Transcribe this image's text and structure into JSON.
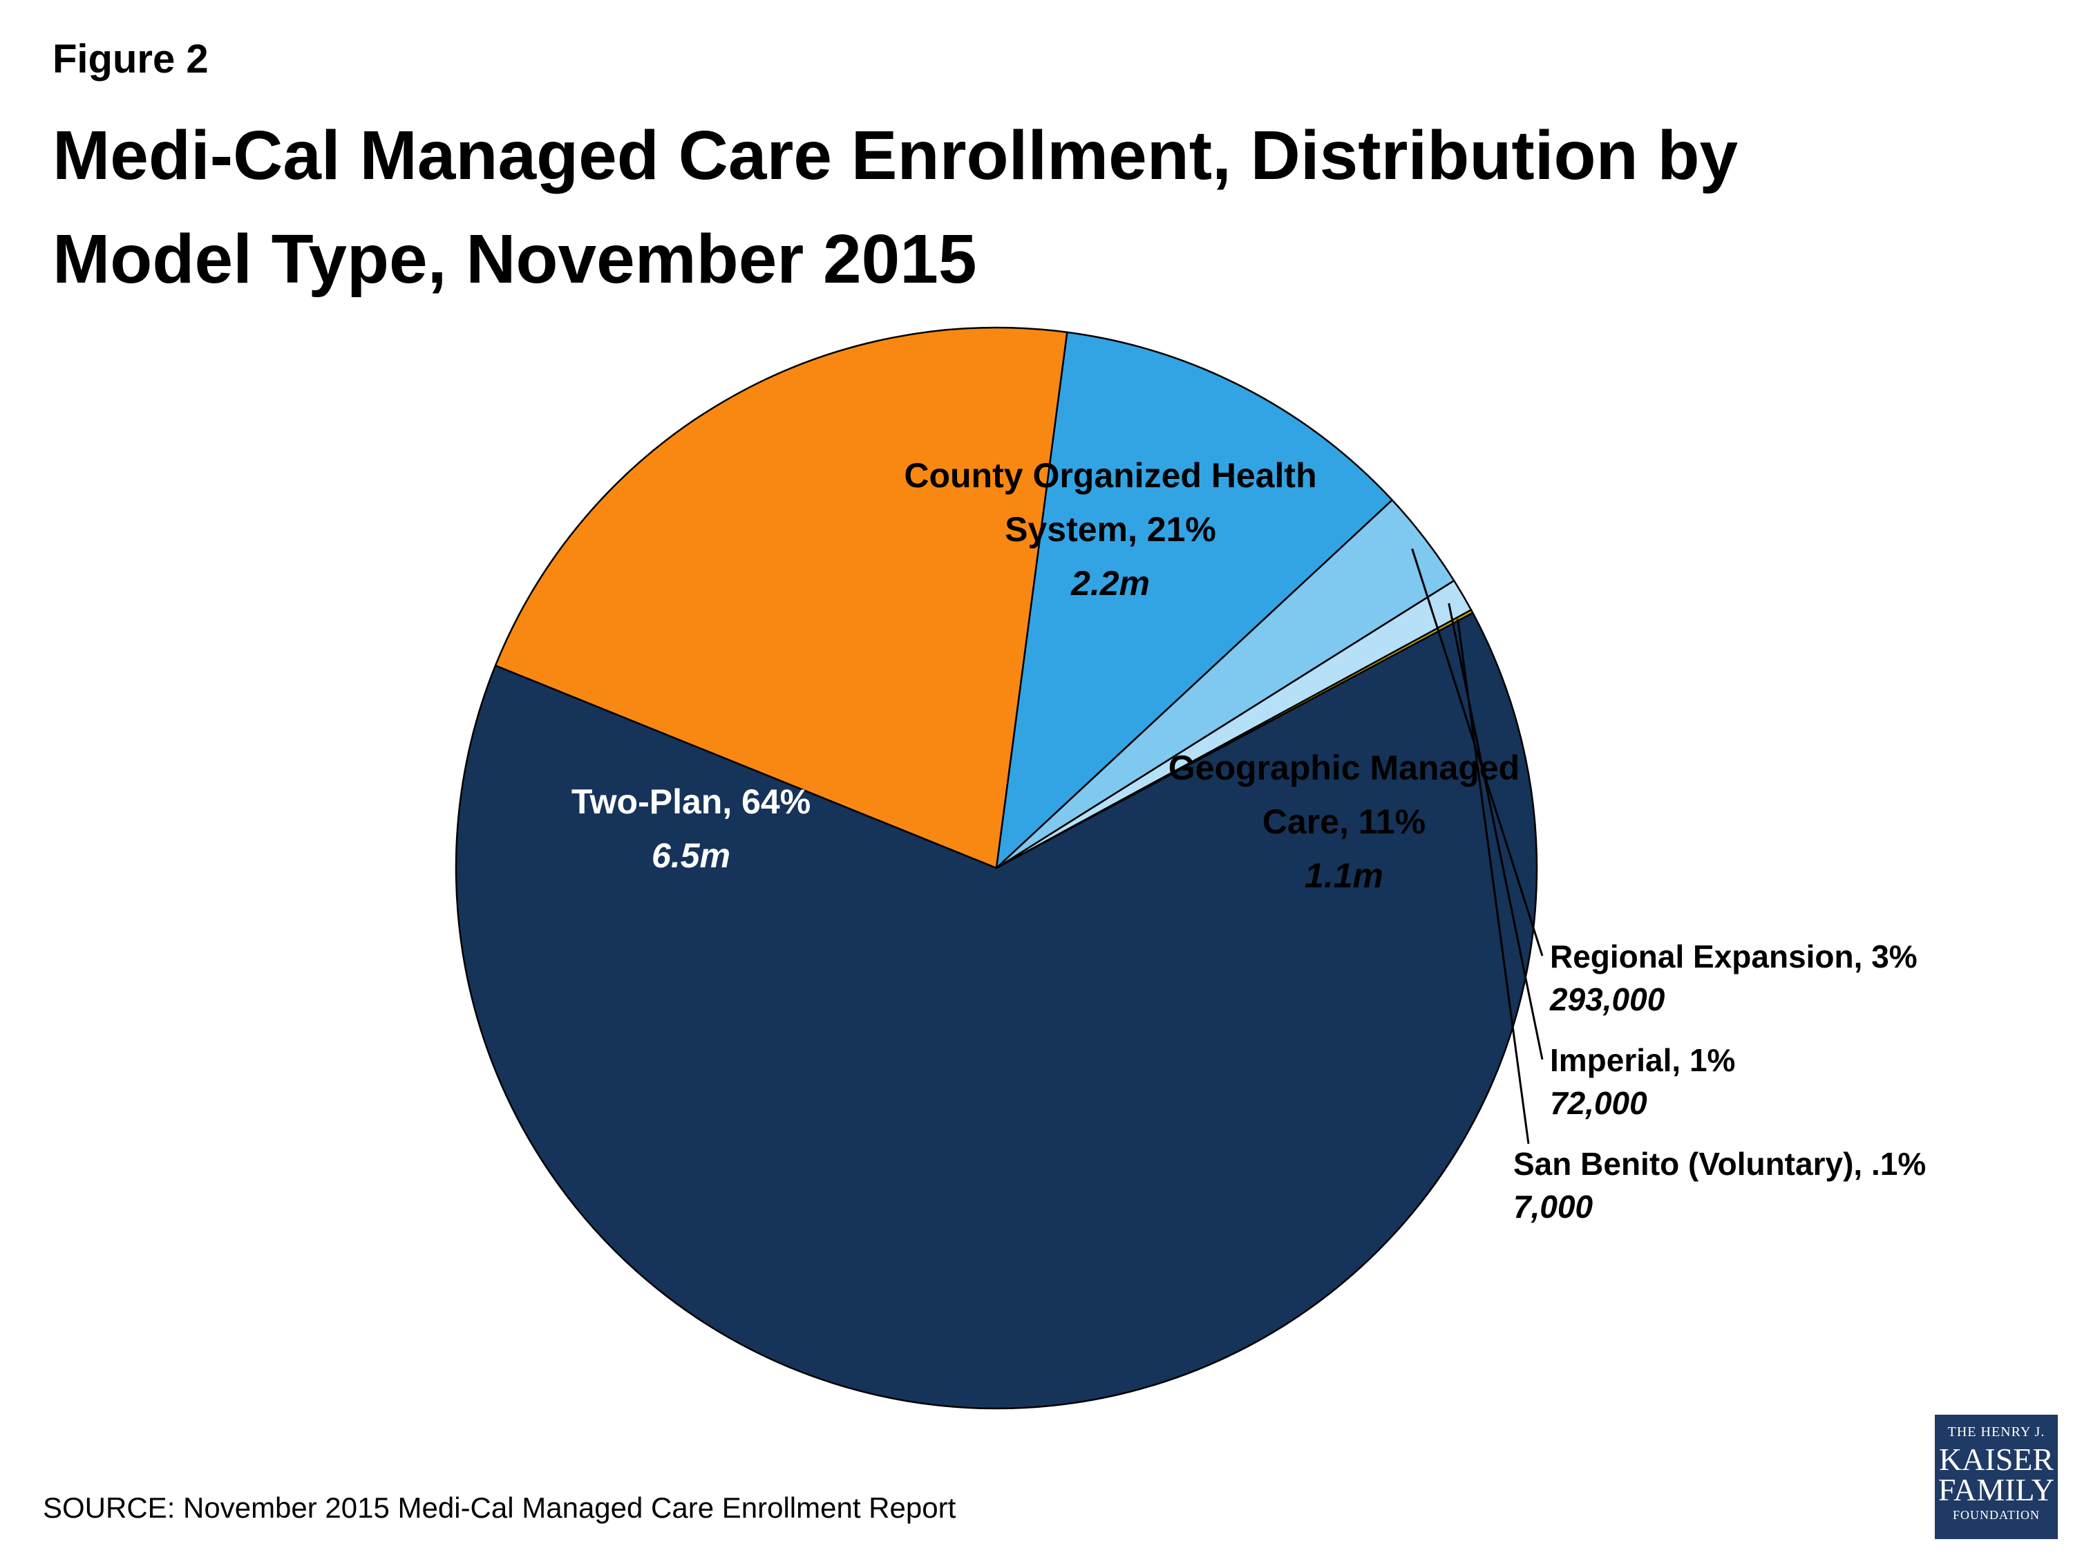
{
  "figure_label": "Figure 2",
  "title_line1": "Medi-Cal Managed Care Enrollment, Distribution by",
  "title_line2": "Model Type, November 2015",
  "source": "SOURCE: November 2015 Medi-Cal Managed Care Enrollment Report",
  "logo": {
    "line1": "THE HENRY J.",
    "line2": "KAISER",
    "line3": "FAMILY",
    "line4": "FOUNDATION"
  },
  "chart_data": {
    "type": "pie",
    "title": "Medi-Cal Managed Care Enrollment, Distribution by Model Type, November 2015",
    "slices": [
      {
        "label_lines": [
          "County Organized Health",
          "System, 21%"
        ],
        "percent": 21,
        "value_label": "2.2m",
        "color": "#f98812"
      },
      {
        "label_lines": [
          "Geographic Managed",
          "Care, 11%"
        ],
        "percent": 11,
        "value_label": "1.1m",
        "color": "#32a4e4"
      },
      {
        "label_lines": [
          "Regional Expansion, 3%"
        ],
        "percent": 3,
        "value_label": "293,000",
        "color": "#7fc8ef"
      },
      {
        "label_lines": [
          "Imperial, 1%"
        ],
        "percent": 1,
        "value_label": "72,000",
        "color": "#b6e0f7"
      },
      {
        "label_lines": [
          "San Benito (Voluntary), .1%"
        ],
        "percent": 0.1,
        "value_label": "7,000",
        "color": "#c8a600"
      },
      {
        "label_lines": [
          "Two-Plan, 64%"
        ],
        "percent": 64,
        "value_label": "6.5m",
        "color": "#163459"
      }
    ]
  }
}
